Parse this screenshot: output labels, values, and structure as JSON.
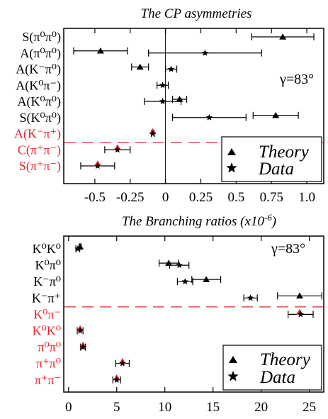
{
  "chart_data": [
    {
      "type": "scatter",
      "title": "The CP asymmetries",
      "gamma_label": "γ=83°",
      "xlim": [
        -0.72,
        1.12
      ],
      "xticks": [
        -0.5,
        -0.25,
        0,
        0.25,
        0.5,
        0.75,
        1.0
      ],
      "xtick_labels": [
        "-0.5",
        "-0.25",
        "0",
        "0.25",
        "0.5",
        "0.75",
        "1.0"
      ],
      "zero_line": true,
      "separator_after_row": 7,
      "rows": [
        {
          "label": "S(π⁰π⁰)",
          "color": "#000000",
          "theory": {
            "value": 0.83,
            "err": 0.22
          },
          "data": null
        },
        {
          "label": "A(π⁰π⁰)",
          "color": "#000000",
          "theory": {
            "value": -0.46,
            "err": 0.19
          },
          "data": {
            "value": 0.28,
            "err": 0.4
          }
        },
        {
          "label": "A(K⁻π⁰)",
          "color": "#000000",
          "theory": {
            "value": -0.18,
            "err": 0.06
          },
          "data": {
            "value": 0.04,
            "err": 0.04
          }
        },
        {
          "label": "A(K⁰π⁻)",
          "color": "#000000",
          "theory": null,
          "data": {
            "value": -0.02,
            "err": 0.04
          }
        },
        {
          "label": "A(K⁰π⁰)",
          "color": "#000000",
          "theory": {
            "value": 0.1,
            "err": 0.05
          },
          "data": {
            "value": -0.02,
            "err": 0.13
          }
        },
        {
          "label": "S(K⁰π⁰)",
          "color": "#000000",
          "theory": {
            "value": 0.78,
            "err": 0.16
          },
          "data": {
            "value": 0.31,
            "err": 0.26
          }
        },
        {
          "label": "A(K⁻π⁺)",
          "color": "#e8242c",
          "theory": {
            "value": -0.09,
            "err": 0.0
          },
          "data": {
            "value": -0.09,
            "err": 0.01
          }
        },
        {
          "label": "C(π⁺π⁻)",
          "color": "#e8242c",
          "theory": {
            "value": -0.34,
            "err": 0.0
          },
          "data": {
            "value": -0.34,
            "err": 0.09
          }
        },
        {
          "label": "S(π⁺π⁻)",
          "color": "#e8242c",
          "theory": {
            "value": -0.48,
            "err": 0.0
          },
          "data": {
            "value": -0.48,
            "err": 0.12
          }
        }
      ],
      "legend": [
        {
          "marker": "triangle",
          "label": "Theory"
        },
        {
          "marker": "star",
          "label": "Data"
        }
      ],
      "legend_position": "bottom-right"
    },
    {
      "type": "scatter",
      "title": "The Branching ratios (x10",
      "title_sup": "-6",
      "title_end": ")",
      "gamma_label": "γ=83°",
      "xlim": [
        -0.5,
        26.5
      ],
      "xticks": [
        0,
        5,
        10,
        15,
        20,
        25
      ],
      "xtick_labels": [
        "0",
        "5",
        "10",
        "15",
        "20",
        "25"
      ],
      "zero_line": false,
      "separator_after_row": 4,
      "rows": [
        {
          "label": "K⁰K⁰",
          "color": "#000000",
          "theory": {
            "value": 1.2,
            "err": 0.1
          },
          "data": {
            "value": 0.96,
            "err": 0.2
          }
        },
        {
          "label": "K⁰π⁰",
          "color": "#000000",
          "theory": {
            "value": 10.4,
            "err": 1.0
          },
          "data": {
            "value": 11.5,
            "err": 1.0
          }
        },
        {
          "label": "K⁻π⁰",
          "color": "#000000",
          "theory": {
            "value": 14.3,
            "err": 1.5
          },
          "data": {
            "value": 12.1,
            "err": 0.8
          }
        },
        {
          "label": "K⁻π⁺",
          "color": "#000000",
          "theory": {
            "value": 24.0,
            "err": 2.3
          },
          "data": {
            "value": 18.9,
            "err": 0.7
          }
        },
        {
          "label": "K⁰π⁻",
          "color": "#e8242c",
          "theory": {
            "value": 24.0,
            "err": 0.0
          },
          "data": {
            "value": 24.1,
            "err": 1.3
          }
        },
        {
          "label": "K⁰K⁰",
          "color": "#e8242c",
          "theory": {
            "value": 1.2,
            "err": 0.0
          },
          "data": {
            "value": 1.2,
            "err": 0.3
          }
        },
        {
          "label": "π⁰π⁰",
          "color": "#e8242c",
          "theory": {
            "value": 1.5,
            "err": 0.0
          },
          "data": {
            "value": 1.5,
            "err": 0.25
          }
        },
        {
          "label": "π⁺π⁰",
          "color": "#e8242c",
          "theory": {
            "value": 5.6,
            "err": 0.0
          },
          "data": {
            "value": 5.6,
            "err": 0.7
          }
        },
        {
          "label": "π⁺π⁻",
          "color": "#e8242c",
          "theory": {
            "value": 5.0,
            "err": 0.0
          },
          "data": {
            "value": 5.0,
            "err": 0.4
          }
        }
      ],
      "legend": [
        {
          "marker": "triangle",
          "label": "Theory"
        },
        {
          "marker": "star",
          "label": "Data"
        }
      ],
      "legend_position": "bottom-right"
    }
  ]
}
